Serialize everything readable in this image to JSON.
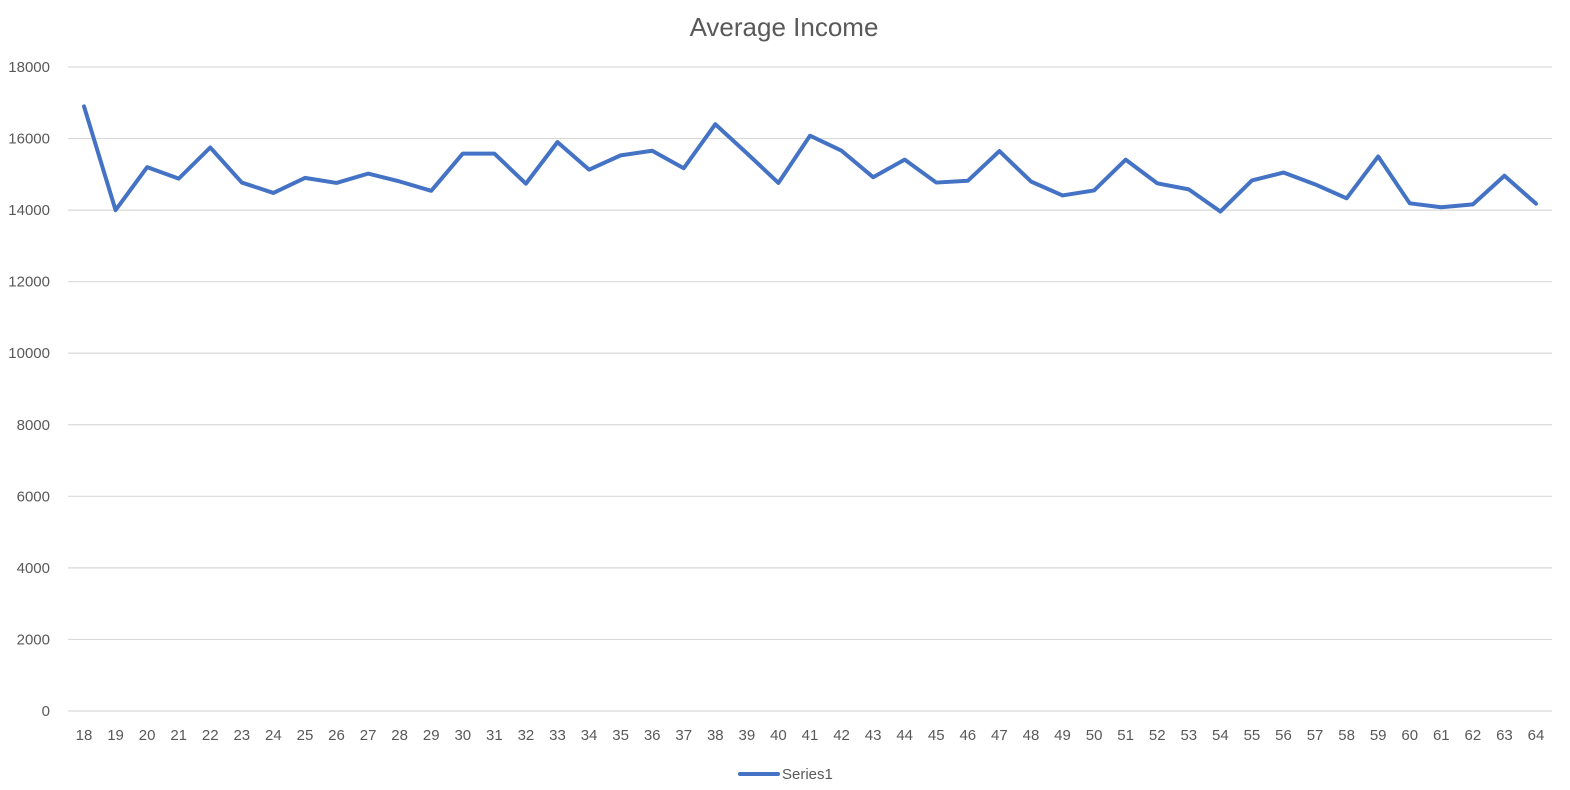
{
  "chart_data": {
    "type": "line",
    "title": "Average Income",
    "xlabel": "",
    "ylabel": "",
    "ylim": [
      0,
      18000
    ],
    "yticks": [
      0,
      2000,
      4000,
      6000,
      8000,
      10000,
      12000,
      14000,
      16000,
      18000
    ],
    "grid": true,
    "legend": "bottom",
    "categories": [
      18,
      19,
      20,
      21,
      22,
      23,
      24,
      25,
      26,
      27,
      28,
      29,
      30,
      31,
      32,
      33,
      34,
      35,
      36,
      37,
      38,
      39,
      40,
      41,
      42,
      43,
      44,
      45,
      46,
      47,
      48,
      49,
      50,
      51,
      52,
      53,
      54,
      55,
      56,
      57,
      58,
      59,
      60,
      61,
      62,
      63,
      64
    ],
    "series": [
      {
        "name": "Series1",
        "color": "#4472c4",
        "values": [
          16900,
          14000,
          15200,
          14880,
          15750,
          14770,
          14480,
          14900,
          14760,
          15020,
          14800,
          14540,
          15580,
          15580,
          14740,
          15900,
          15130,
          15530,
          15660,
          15170,
          16400,
          15590,
          14760,
          16080,
          15660,
          14920,
          15410,
          14770,
          14820,
          15650,
          14800,
          14410,
          14550,
          15410,
          14750,
          14580,
          13960,
          14830,
          15050,
          14720,
          14330,
          15500,
          14190,
          14080,
          14160,
          14960,
          14180
        ]
      }
    ]
  }
}
